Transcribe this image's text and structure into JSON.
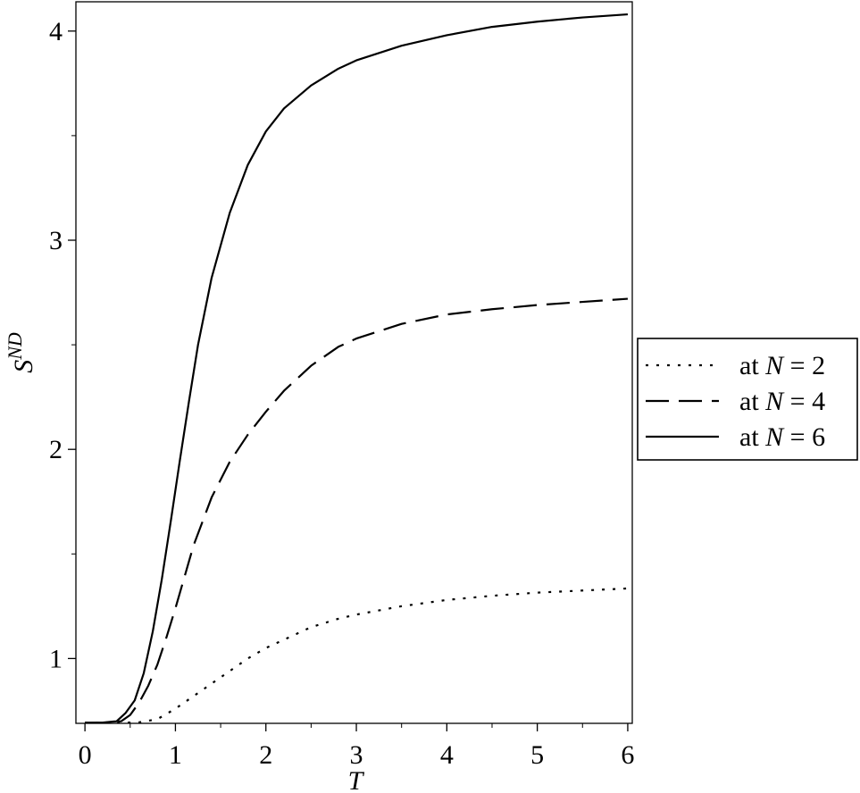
{
  "chart_data": {
    "type": "line",
    "title": "",
    "xlabel": "T",
    "ylabel": {
      "base": "S",
      "sup": "ND"
    },
    "xlim": [
      -0.1,
      6.05
    ],
    "ylim": [
      0.69,
      4.14
    ],
    "xticks": [
      0,
      1,
      2,
      3,
      4,
      5,
      6
    ],
    "xtick_labels": [
      "0",
      "1",
      "2",
      "3",
      "4",
      "5",
      "6"
    ],
    "yticks": [
      1,
      2,
      3,
      4
    ],
    "ytick_labels": [
      "1",
      "2",
      "3",
      "4"
    ],
    "grid": false,
    "legend_position": "right",
    "series": [
      {
        "name": "at N = 2",
        "legend_prefix": "at ",
        "legend_var": "N",
        "legend_suffix": " = 2",
        "style": "dotted",
        "x": [
          0.0,
          0.2,
          0.4,
          0.6,
          0.8,
          1.0,
          1.2,
          1.4,
          1.6,
          1.8,
          2.0,
          2.2,
          2.5,
          2.8,
          3.0,
          3.5,
          4.0,
          4.5,
          5.0,
          5.5,
          6.0
        ],
        "y": [
          0.693,
          0.693,
          0.693,
          0.695,
          0.71,
          0.76,
          0.82,
          0.88,
          0.94,
          1.0,
          1.05,
          1.09,
          1.15,
          1.19,
          1.21,
          1.25,
          1.28,
          1.3,
          1.315,
          1.325,
          1.335
        ]
      },
      {
        "name": "at N = 4",
        "legend_prefix": "at ",
        "legend_var": "N",
        "legend_suffix": " = 4",
        "style": "dashed",
        "x": [
          0.0,
          0.2,
          0.4,
          0.5,
          0.6,
          0.7,
          0.8,
          0.9,
          1.0,
          1.1,
          1.2,
          1.4,
          1.6,
          1.8,
          2.0,
          2.2,
          2.5,
          2.8,
          3.0,
          3.5,
          4.0,
          4.5,
          5.0,
          5.5,
          6.0
        ],
        "y": [
          0.693,
          0.693,
          0.7,
          0.73,
          0.79,
          0.87,
          0.97,
          1.1,
          1.24,
          1.39,
          1.54,
          1.77,
          1.94,
          2.07,
          2.18,
          2.28,
          2.4,
          2.49,
          2.53,
          2.6,
          2.645,
          2.67,
          2.69,
          2.705,
          2.72
        ]
      },
      {
        "name": "at N = 6",
        "legend_prefix": "at ",
        "legend_var": "N",
        "legend_suffix": " = 6",
        "style": "solid",
        "x": [
          0.0,
          0.2,
          0.35,
          0.45,
          0.55,
          0.65,
          0.75,
          0.85,
          0.95,
          1.05,
          1.15,
          1.25,
          1.4,
          1.6,
          1.8,
          2.0,
          2.2,
          2.5,
          2.8,
          3.0,
          3.5,
          4.0,
          4.5,
          5.0,
          5.5,
          6.0
        ],
        "y": [
          0.693,
          0.694,
          0.7,
          0.74,
          0.8,
          0.93,
          1.13,
          1.38,
          1.66,
          1.95,
          2.23,
          2.5,
          2.82,
          3.13,
          3.36,
          3.52,
          3.63,
          3.74,
          3.82,
          3.86,
          3.93,
          3.98,
          4.02,
          4.045,
          4.065,
          4.08
        ]
      }
    ]
  }
}
